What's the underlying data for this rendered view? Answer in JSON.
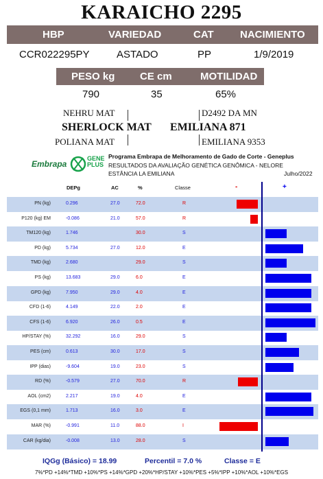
{
  "title": "KARAICHO 2295",
  "header1": {
    "labels": [
      "HBP",
      "VARIEDAD",
      "CAT",
      "NACIMIENTO"
    ],
    "values": [
      "CCR022295PY",
      "ASTADO",
      "PP",
      "1/9/2019"
    ]
  },
  "header2": {
    "labels": [
      "PESO kg",
      "CE cm",
      "MOTILIDAD"
    ],
    "values": [
      "790",
      "35",
      "65%"
    ]
  },
  "pedigree": {
    "sire_sire": "NEHRU MAT",
    "sire": "SHERLOCK MAT",
    "sire_dam": "POLIANA MAT",
    "dam_sire": "D2492 DA MN",
    "dam": "EMILIANA 871",
    "dam_dam": "EMILIANA 9353"
  },
  "logos": {
    "embrapa": "Embrapa",
    "gene1": "GENE",
    "gene2": "PLUS",
    "dna_icon": "dna-icon"
  },
  "program": {
    "line1": "Programa Embrapa de Melhoramento de Gado de Corte - Geneplus",
    "line2": "RESULTADOS DA AVALIAÇÃO GENÉTICA GENÔMICA - NELORE",
    "line3": "ESTÂNCIA LA EMILIANA",
    "date": "Julho/2022"
  },
  "table_header": {
    "depg": "DEPg",
    "ac": "AC",
    "pct": "%",
    "classe": "Classe",
    "minus": "-",
    "plus": "+"
  },
  "colors": {
    "header_bg": "#7f6d6b",
    "row_shade": "#c6d6ee",
    "pos_bar": "#0000ee",
    "neg_bar": "#ee0000",
    "axis": "#00008b",
    "footer_text": "#1d2b9a"
  },
  "traits": [
    {
      "name": "PN (kg)",
      "depg": "0.296",
      "ac": "27.0",
      "pct": "72.0",
      "classe": "R",
      "bar": -0.26
    },
    {
      "name": "P120 (kg) EM",
      "depg": "-0.086",
      "ac": "21.0",
      "pct": "57.0",
      "classe": "R",
      "bar": -0.09
    },
    {
      "name": "TM120 (kg)",
      "depg": "1.746",
      "ac": "",
      "pct": "30.0",
      "classe": "S",
      "bar": 0.26
    },
    {
      "name": "PD (kg)",
      "depg": "5.734",
      "ac": "27.0",
      "pct": "12.0",
      "classe": "E",
      "bar": 0.46
    },
    {
      "name": "TMD (kg)",
      "depg": "2.680",
      "ac": "",
      "pct": "29.0",
      "classe": "S",
      "bar": 0.26
    },
    {
      "name": "PS (kg)",
      "depg": "13.683",
      "ac": "29.0",
      "pct": "6.0",
      "classe": "E",
      "bar": 0.56
    },
    {
      "name": "GPD (kg)",
      "depg": "7.950",
      "ac": "29.0",
      "pct": "4.0",
      "classe": "E",
      "bar": 0.56
    },
    {
      "name": "CFD (1-6)",
      "depg": "4.149",
      "ac": "22.0",
      "pct": "2.0",
      "classe": "E",
      "bar": 0.56
    },
    {
      "name": "CFS (1-6)",
      "depg": "6.920",
      "ac": "26.0",
      "pct": "0.5",
      "classe": "E",
      "bar": 0.61
    },
    {
      "name": "HP/STAY (%)",
      "depg": "32.292",
      "ac": "16.0",
      "pct": "29.0",
      "classe": "S",
      "bar": 0.26
    },
    {
      "name": "PES (cm)",
      "depg": "0.613",
      "ac": "30.0",
      "pct": "17.0",
      "classe": "S",
      "bar": 0.41
    },
    {
      "name": "IPP (dias)",
      "depg": "-9.604",
      "ac": "19.0",
      "pct": "23.0",
      "classe": "S",
      "bar": 0.34
    },
    {
      "name": "RD (%)",
      "depg": "-0.579",
      "ac": "27.0",
      "pct": "70.0",
      "classe": "R",
      "bar": -0.24
    },
    {
      "name": "AOL (cm2)",
      "depg": "2.217",
      "ac": "19.0",
      "pct": "4.0",
      "classe": "E",
      "bar": 0.56
    },
    {
      "name": "EGS (0,1 mm)",
      "depg": "1.713",
      "ac": "16.0",
      "pct": "3.0",
      "classe": "E",
      "bar": 0.58
    },
    {
      "name": "MAR (%)",
      "depg": "-0.991",
      "ac": "11.0",
      "pct": "88.0",
      "classe": "I",
      "bar": -0.47
    },
    {
      "name": "CAR (kg/dia)",
      "depg": "-0.008",
      "ac": "13.0",
      "pct": "28.0",
      "classe": "S",
      "bar": 0.28
    }
  ],
  "footer": {
    "iqg": "IQGg (Básico) = 18.99",
    "percentil": "Percentil = 7.0 %",
    "classe": "Classe = E",
    "formula": "7%*PD +14%*TMD +10%*PS +14%*GPD +20%*HP/STAY +10%*PES +5%*IPP +10%*AOL +10%*EGS"
  }
}
